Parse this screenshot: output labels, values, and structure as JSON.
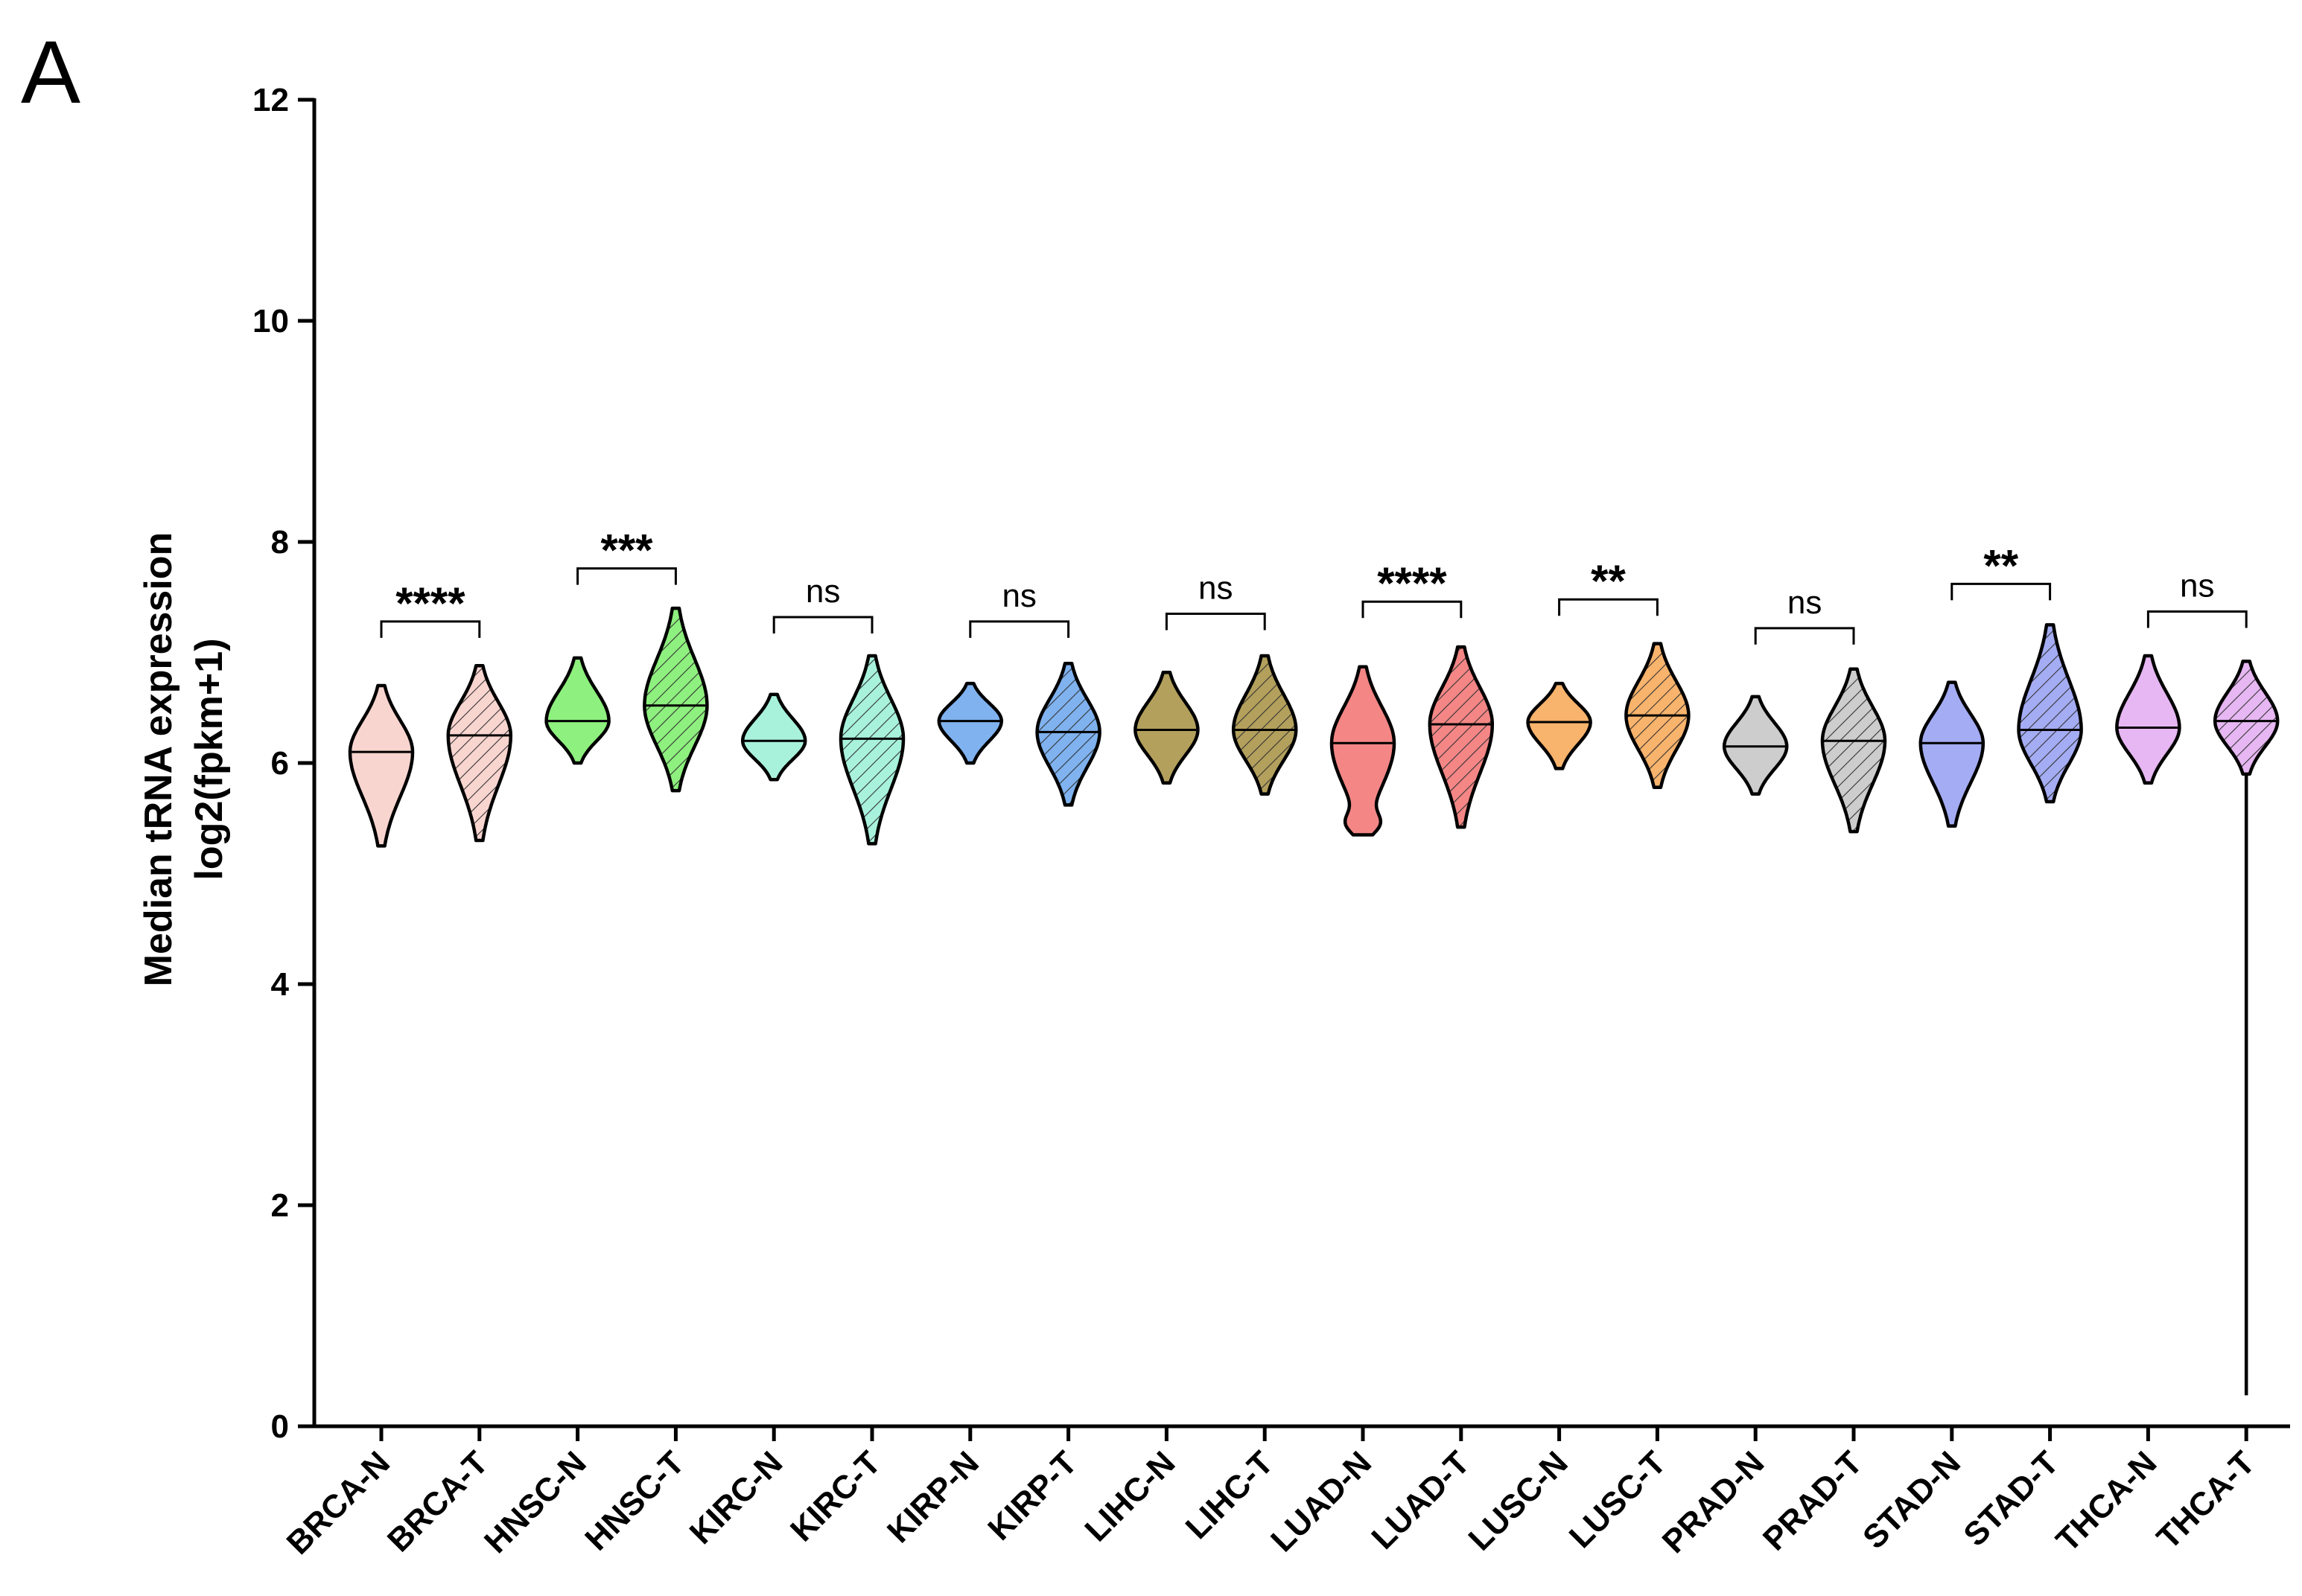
{
  "panel_label": "A",
  "chart_data": {
    "type": "violin",
    "ylabel_lines": [
      "Median tRNA expression",
      "log2(fpkm+1)"
    ],
    "xlabel": "",
    "ylim": [
      0,
      12
    ],
    "yticks": [
      0,
      2,
      4,
      6,
      8,
      10,
      12
    ],
    "categories": [
      "BRCA-N",
      "BRCA-T",
      "HNSC-N",
      "HNSC-T",
      "KIRC-N",
      "KIRC-T",
      "KIRP-N",
      "KIRP-T",
      "LIHC-N",
      "LIHC-T",
      "LUAD-N",
      "LUAD-T",
      "LUSC-N",
      "LUSC-T",
      "PRAD-N",
      "PRAD-T",
      "STAD-N",
      "STAD-T",
      "THCA-N",
      "THCA-T"
    ],
    "colors": {
      "BRCA": "#f9d5d0",
      "HNSC": "#8ef07e",
      "KIRC": "#a8f2dc",
      "KIRP": "#7fb2ef",
      "LIHC": "#b3a05c",
      "LUAD": "#f48686",
      "LUSC": "#f8b36c",
      "PRAD": "#cdcdcd",
      "STAD": "#a4acf3",
      "THCA": "#e6b7f2"
    },
    "violins": [
      {
        "label": "BRCA-N",
        "min": 5.25,
        "max": 6.7,
        "median": 6.1,
        "hatched": false
      },
      {
        "label": "BRCA-T",
        "min": 5.3,
        "max": 6.88,
        "median": 6.25,
        "hatched": true
      },
      {
        "label": "HNSC-N",
        "min": 6.0,
        "max": 6.95,
        "median": 6.38,
        "hatched": false
      },
      {
        "label": "HNSC-T",
        "min": 5.75,
        "max": 7.4,
        "median": 6.52,
        "hatched": true
      },
      {
        "label": "KIRC-N",
        "min": 5.85,
        "max": 6.62,
        "median": 6.2,
        "hatched": false
      },
      {
        "label": "KIRC-T",
        "min": 5.27,
        "max": 6.97,
        "median": 6.22,
        "hatched": true
      },
      {
        "label": "KIRP-N",
        "min": 6.0,
        "max": 6.72,
        "median": 6.38,
        "hatched": false
      },
      {
        "label": "KIRP-T",
        "min": 5.62,
        "max": 6.9,
        "median": 6.28,
        "hatched": true
      },
      {
        "label": "LIHC-N",
        "min": 5.82,
        "max": 6.82,
        "median": 6.3,
        "hatched": false
      },
      {
        "label": "LIHC-T",
        "min": 5.72,
        "max": 6.97,
        "median": 6.3,
        "hatched": true
      },
      {
        "label": "LUAD-N",
        "min": 5.35,
        "max": 6.87,
        "median": 6.18,
        "hatched": false
      },
      {
        "label": "LUAD-T",
        "min": 5.42,
        "max": 7.05,
        "median": 6.35,
        "hatched": true
      },
      {
        "label": "LUSC-N",
        "min": 5.95,
        "max": 6.72,
        "median": 6.37,
        "hatched": false
      },
      {
        "label": "LUSC-T",
        "min": 5.78,
        "max": 7.08,
        "median": 6.43,
        "hatched": true
      },
      {
        "label": "PRAD-N",
        "min": 5.72,
        "max": 6.6,
        "median": 6.15,
        "hatched": false
      },
      {
        "label": "PRAD-T",
        "min": 5.38,
        "max": 6.85,
        "median": 6.2,
        "hatched": true
      },
      {
        "label": "STAD-N",
        "min": 5.43,
        "max": 6.73,
        "median": 6.18,
        "hatched": false
      },
      {
        "label": "STAD-T",
        "min": 5.65,
        "max": 7.25,
        "median": 6.3,
        "hatched": true
      },
      {
        "label": "THCA-N",
        "min": 5.82,
        "max": 6.97,
        "median": 6.32,
        "hatched": false
      },
      {
        "label": "THCA-T",
        "min": 0.28,
        "max": 6.92,
        "median": 6.38,
        "hatched": true
      }
    ],
    "comparisons": [
      {
        "pair": [
          "BRCA-N",
          "BRCA-T"
        ],
        "label": "****",
        "bracket_y": 7.28
      },
      {
        "pair": [
          "HNSC-N",
          "HNSC-T"
        ],
        "label": "***",
        "bracket_y": 7.76
      },
      {
        "pair": [
          "KIRC-N",
          "KIRC-T"
        ],
        "label": "ns",
        "bracket_y": 7.32
      },
      {
        "pair": [
          "KIRP-N",
          "KIRP-T"
        ],
        "label": "ns",
        "bracket_y": 7.28
      },
      {
        "pair": [
          "LIHC-N",
          "LIHC-T"
        ],
        "label": "ns",
        "bracket_y": 7.35
      },
      {
        "pair": [
          "LUAD-N",
          "LUAD-T"
        ],
        "label": "****",
        "bracket_y": 7.46
      },
      {
        "pair": [
          "LUSC-N",
          "LUSC-T"
        ],
        "label": "**",
        "bracket_y": 7.48
      },
      {
        "pair": [
          "PRAD-N",
          "PRAD-T"
        ],
        "label": "ns",
        "bracket_y": 7.22
      },
      {
        "pair": [
          "STAD-N",
          "STAD-T"
        ],
        "label": "**",
        "bracket_y": 7.62
      },
      {
        "pair": [
          "THCA-N",
          "THCA-T"
        ],
        "label": "ns",
        "bracket_y": 7.37
      }
    ]
  }
}
